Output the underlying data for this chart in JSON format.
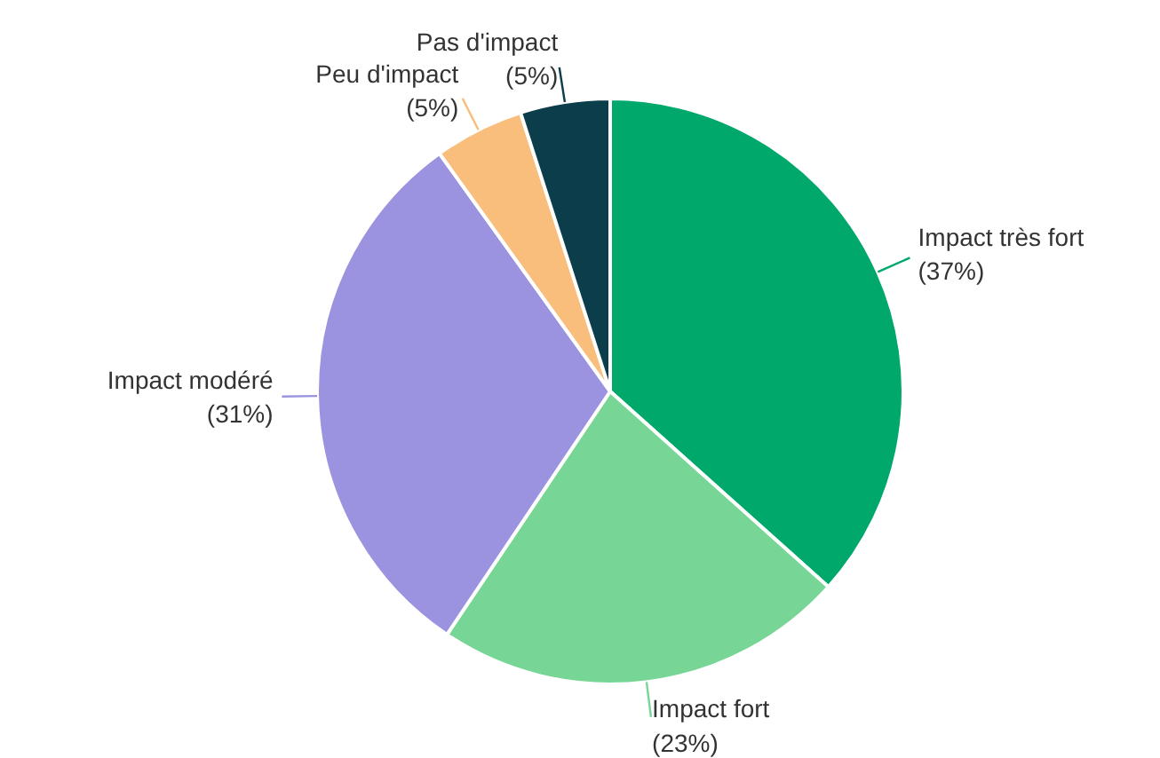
{
  "chart_data": {
    "type": "pie",
    "categories": [
      "Impact très fort",
      "Impact fort",
      "Impact modéré",
      "Peu d'impact",
      "Pas d'impact"
    ],
    "values": [
      37,
      23,
      31,
      5,
      5
    ],
    "value_labels": [
      "(37%)",
      "(23%)",
      "(31%)",
      "(5%)",
      "(5%)"
    ],
    "colors": [
      "#00a86b",
      "#77d696",
      "#9b93e0",
      "#f9be7c",
      "#0b3d4a"
    ]
  }
}
